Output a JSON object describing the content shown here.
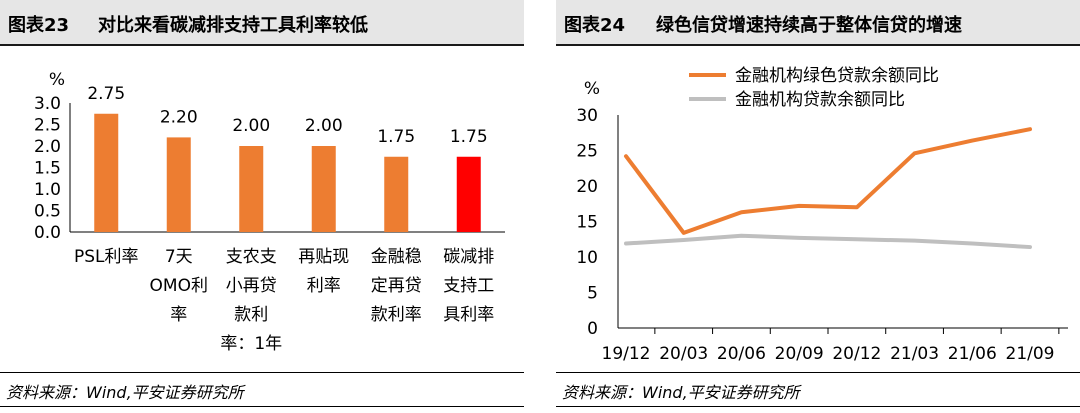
{
  "left_panel": {
    "fig_label": "图表23",
    "title": "对比来看碳减排支持工具利率较低",
    "source": "资料来源：Wind,平安证券研究所"
  },
  "right_panel": {
    "fig_label": "图表24",
    "title": "绿色信贷增速持续高于整体信贷的增速",
    "source": "资料来源：Wind,平安证券研究所"
  },
  "chart_data": [
    {
      "type": "bar",
      "title": "",
      "unit_label": "%",
      "categories": [
        [
          "PSL利率"
        ],
        [
          "7天",
          "OMO利",
          "率"
        ],
        [
          "支农支",
          "小再贷",
          "款利",
          "率：1年"
        ],
        [
          "再贴现",
          "利率"
        ],
        [
          "金融稳",
          "定再贷",
          "款利率"
        ],
        [
          "碳减排",
          "支持工",
          "具利率"
        ]
      ],
      "values": [
        2.75,
        2.2,
        2.0,
        2.0,
        1.75,
        1.75
      ],
      "data_labels": [
        "2.75",
        "2.20",
        "2.00",
        "2.00",
        "1.75",
        "1.75"
      ],
      "bar_colors": [
        "#ed7d31",
        "#ed7d31",
        "#ed7d31",
        "#ed7d31",
        "#ed7d31",
        "#ff0000"
      ],
      "ylim": [
        0,
        3.0
      ],
      "yticks": [
        "0.0",
        "0.5",
        "1.0",
        "1.5",
        "2.0",
        "2.5",
        "3.0"
      ],
      "grid": false,
      "legend": "none"
    },
    {
      "type": "line",
      "title": "",
      "unit_label": "%",
      "x": [
        "19/12",
        "20/03",
        "20/06",
        "20/09",
        "20/12",
        "21/03",
        "21/06",
        "21/09"
      ],
      "series": [
        {
          "name": "金融机构绿色贷款余额同比",
          "color": "#ed7d31",
          "values": [
            24.2,
            13.4,
            16.3,
            17.2,
            17.0,
            24.6,
            26.4,
            28.0
          ]
        },
        {
          "name": "金融机构贷款余额同比",
          "color": "#bfbfbf",
          "values": [
            11.9,
            12.4,
            13.0,
            12.7,
            12.5,
            12.3,
            11.9,
            11.4
          ]
        }
      ],
      "ylim": [
        0,
        30
      ],
      "yticks": [
        "0",
        "5",
        "10",
        "15",
        "20",
        "25",
        "30"
      ],
      "grid": false,
      "legend": "top"
    }
  ]
}
